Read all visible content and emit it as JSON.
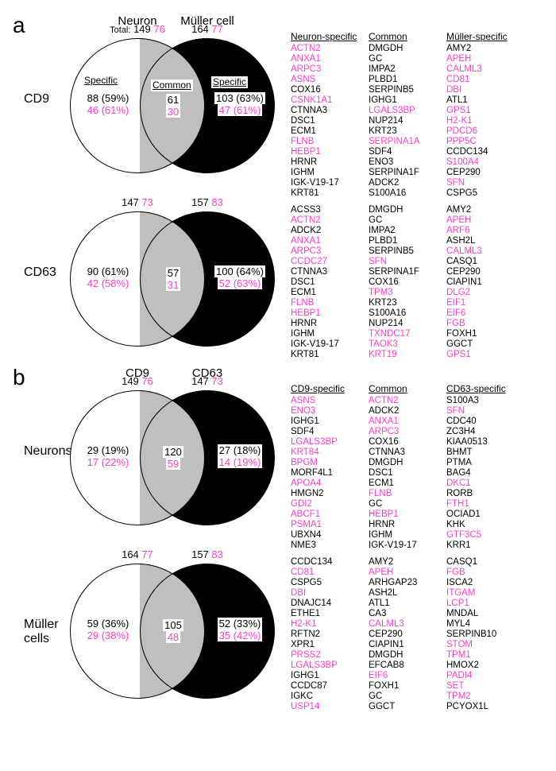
{
  "colors": {
    "pink": "#ff3cc7",
    "gray": "#bfbfbf",
    "black": "#000",
    "white": "#fff"
  },
  "a": {
    "headerL": "Neuron",
    "headerR": "Müller cell",
    "totalWord": "Total:",
    "cd9": {
      "lbl": "CD9",
      "totL_b": "149",
      "totL_p": "76",
      "totR_b": "164",
      "totR_p": "77",
      "specHdrL": "Specific",
      "specHdrC": "Common",
      "specHdrR": "Specific",
      "nL_b": "88 (59%)",
      "nL_p": "46 (61%)",
      "nC_b": "61",
      "nC_p": "30",
      "nR_b": "103 (63%)",
      "nR_p": "47 (61%)",
      "cols": {
        "h1": "Neuron-specific",
        "h2": "Common",
        "h3": "Müller-specific",
        "c1": [
          [
            "ACTN2",
            1
          ],
          [
            "ANXA1",
            1
          ],
          [
            "ARPC3",
            1
          ],
          [
            "ASNS",
            1
          ],
          [
            "COX16",
            0
          ],
          [
            "CSNK1A1",
            1
          ],
          [
            "CTNNA3",
            0
          ],
          [
            "DSC1",
            0
          ],
          [
            "ECM1",
            0
          ],
          [
            "FLNB",
            1
          ],
          [
            "HEBP1",
            1
          ],
          [
            "HRNR",
            0
          ],
          [
            "IGHM",
            0
          ],
          [
            "IGK-V19-17",
            0
          ],
          [
            "KRT81",
            0
          ]
        ],
        "c2": [
          [
            "DMGDH",
            0
          ],
          [
            "GC",
            0
          ],
          [
            "IMPA2",
            0
          ],
          [
            "PLBD1",
            0
          ],
          [
            "SERPINB5",
            0
          ],
          [
            "IGHG1",
            0
          ],
          [
            "LGALS3BP",
            1
          ],
          [
            "NUP214",
            0
          ],
          [
            "KRT23",
            0
          ],
          [
            "SERPINA1A",
            1
          ],
          [
            "SDF4",
            0
          ],
          [
            "ENO3",
            0
          ],
          [
            "SERPINA1F",
            0
          ],
          [
            "ADCK2",
            0
          ],
          [
            "S100A16",
            0
          ]
        ],
        "c3": [
          [
            "AMY2",
            0
          ],
          [
            "APEH",
            1
          ],
          [
            "CALML3",
            1
          ],
          [
            "CD81",
            1
          ],
          [
            "DBI",
            1
          ],
          [
            "ATL1",
            0
          ],
          [
            "GPS1",
            1
          ],
          [
            "H2-K1",
            1
          ],
          [
            "PDCD6",
            1
          ],
          [
            "PPP5C",
            1
          ],
          [
            "CCDC134",
            0
          ],
          [
            "S100A4",
            1
          ],
          [
            "CEP290",
            0
          ],
          [
            "SFN",
            1
          ],
          [
            "CSPG5",
            0
          ]
        ]
      }
    },
    "cd63": {
      "lbl": "CD63",
      "totL_b": "147",
      "totL_p": "73",
      "totR_b": "157",
      "totR_p": "83",
      "nL_b": "90 (61%)",
      "nL_p": "42 (58%)",
      "nC_b": "57",
      "nC_p": "31",
      "nR_b": "100 (64%)",
      "nR_p": "52 (63%)",
      "cols": {
        "c1": [
          [
            "ACSS3",
            0
          ],
          [
            "ACTN2",
            1
          ],
          [
            "ADCK2",
            0
          ],
          [
            "ANXA1",
            1
          ],
          [
            "ARPC3",
            1
          ],
          [
            "CCDC27",
            1
          ],
          [
            "CTNNA3",
            0
          ],
          [
            "DSC1",
            0
          ],
          [
            "ECM1",
            0
          ],
          [
            "FLNB",
            1
          ],
          [
            "HEBP1",
            1
          ],
          [
            "HRNR",
            0
          ],
          [
            "IGHM",
            0
          ],
          [
            "IGK-V19-17",
            0
          ],
          [
            "KRT81",
            0
          ]
        ],
        "c2": [
          [
            "DMGDH",
            0
          ],
          [
            "GC",
            0
          ],
          [
            "IMPA2",
            0
          ],
          [
            "PLBD1",
            0
          ],
          [
            "SERPINB5",
            0
          ],
          [
            "SFN",
            1
          ],
          [
            "SERPINA1F",
            0
          ],
          [
            "COX16",
            0
          ],
          [
            "TPM3",
            1
          ],
          [
            "KRT23",
            0
          ],
          [
            "S100A16",
            0
          ],
          [
            "NUP214",
            0
          ],
          [
            "TXNDC17",
            1
          ],
          [
            "TAOK3",
            1
          ],
          [
            "KRT19",
            1
          ]
        ],
        "c3": [
          [
            "AMY2",
            0
          ],
          [
            "APEH",
            1
          ],
          [
            "ARF6",
            1
          ],
          [
            "ASH2L",
            0
          ],
          [
            "CALML3",
            1
          ],
          [
            "CASQ1",
            0
          ],
          [
            "CEP290",
            0
          ],
          [
            "CIAPIN1",
            0
          ],
          [
            "DLG2",
            1
          ],
          [
            "EIF1",
            1
          ],
          [
            "EIF6",
            1
          ],
          [
            "FGB",
            1
          ],
          [
            "FOXH1",
            0
          ],
          [
            "GGCT",
            0
          ],
          [
            "GPS1",
            1
          ]
        ]
      }
    }
  },
  "b": {
    "headerL": "CD9",
    "headerR": "CD63",
    "neurons": {
      "lbl": "Neurons",
      "totL_b": "149",
      "totL_p": "76",
      "totR_b": "147",
      "totR_p": "73",
      "nL_b": "29 (19%)",
      "nL_p": "17 (22%)",
      "nC_b": "120",
      "nC_p": "59",
      "nR_b": "27 (18%)",
      "nR_p": "14 (19%)",
      "cols": {
        "h1": "CD9-specific",
        "h2": "Common",
        "h3": "CD63-specific",
        "c1": [
          [
            "ASNS",
            1
          ],
          [
            "ENO3",
            1
          ],
          [
            "IGHG1",
            0
          ],
          [
            "SDF4",
            0
          ],
          [
            "LGALS3BP",
            1
          ],
          [
            "KRT84",
            1
          ],
          [
            "BPGM",
            1
          ],
          [
            "MORF4L1",
            0
          ],
          [
            "APOA4",
            1
          ],
          [
            "HMGN2",
            0
          ],
          [
            "GDI2",
            1
          ],
          [
            "ABCF1",
            1
          ],
          [
            "PSMA1",
            1
          ],
          [
            "UBXN4",
            0
          ],
          [
            "NME3",
            0
          ]
        ],
        "c2": [
          [
            "ACTN2",
            1
          ],
          [
            "ADCK2",
            0
          ],
          [
            "ANXA1",
            1
          ],
          [
            "ARPC3",
            1
          ],
          [
            "COX16",
            0
          ],
          [
            "CTNNA3",
            0
          ],
          [
            "DMGDH",
            0
          ],
          [
            "DSC1",
            0
          ],
          [
            "ECM1",
            0
          ],
          [
            "FLNB",
            1
          ],
          [
            "GC",
            0
          ],
          [
            "HEBP1",
            1
          ],
          [
            "HRNR",
            0
          ],
          [
            "IGHM",
            0
          ],
          [
            "IGK-V19-17",
            0
          ]
        ],
        "c3": [
          [
            "S100A3",
            0
          ],
          [
            "SFN",
            1
          ],
          [
            "CDC40",
            0
          ],
          [
            "ZC3H4",
            0
          ],
          [
            "KIAA0513",
            0
          ],
          [
            "BHMT",
            0
          ],
          [
            "PTMA",
            0
          ],
          [
            "BAG4",
            0
          ],
          [
            "DKC1",
            1
          ],
          [
            "RORB",
            0
          ],
          [
            "FTH1",
            1
          ],
          [
            "OCIAD1",
            0
          ],
          [
            "KHK",
            0
          ],
          [
            "GTF3C5",
            1
          ],
          [
            "KRR1",
            0
          ]
        ]
      }
    },
    "muller": {
      "lbl": "Müller\ncells",
      "totL_b": "164",
      "totL_p": "77",
      "totR_b": "157",
      "totR_p": "83",
      "nL_b": "59 (36%)",
      "nL_p": "29 (38%)",
      "nC_b": "105",
      "nC_p": "48",
      "nR_b": "52 (33%)",
      "nR_p": "35 (42%)",
      "cols": {
        "c1": [
          [
            "CCDC134",
            0
          ],
          [
            "CD81",
            1
          ],
          [
            "CSPG5",
            0
          ],
          [
            "DBI",
            1
          ],
          [
            "DNAJC14",
            0
          ],
          [
            "ETHE1",
            0
          ],
          [
            "H2-K1",
            1
          ],
          [
            "RFTN2",
            0
          ],
          [
            "XPR1",
            0
          ],
          [
            "PRSS2",
            1
          ],
          [
            "LGALS3BP",
            1
          ],
          [
            "IGHG1",
            0
          ],
          [
            "CCDC87",
            0
          ],
          [
            "IGKC",
            0
          ],
          [
            "USP14",
            1
          ]
        ],
        "c2": [
          [
            "AMY2",
            0
          ],
          [
            "APEH",
            1
          ],
          [
            "ARHGAP23",
            0
          ],
          [
            "ASH2L",
            0
          ],
          [
            "ATL1",
            0
          ],
          [
            "CA3",
            0
          ],
          [
            "CALML3",
            1
          ],
          [
            "CEP290",
            0
          ],
          [
            "CIAPIN1",
            0
          ],
          [
            "DMGDH",
            0
          ],
          [
            "EFCAB8",
            0
          ],
          [
            "EIF6",
            1
          ],
          [
            "FOXH1",
            0
          ],
          [
            "GC",
            0
          ],
          [
            "GGCT",
            0
          ]
        ],
        "c3": [
          [
            "CASQ1",
            0
          ],
          [
            "FGB",
            1
          ],
          [
            "ISCA2",
            0
          ],
          [
            "ITGAM",
            1
          ],
          [
            "LCP1",
            1
          ],
          [
            "MNDAL",
            0
          ],
          [
            "MYL4",
            0
          ],
          [
            "SERPINB10",
            0
          ],
          [
            "STOM",
            1
          ],
          [
            "TPM1",
            1
          ],
          [
            "HMOX2",
            0
          ],
          [
            "PADI4",
            1
          ],
          [
            "SET",
            1
          ],
          [
            "TPM2",
            1
          ],
          [
            "PCYOX1L",
            0
          ]
        ]
      }
    }
  }
}
